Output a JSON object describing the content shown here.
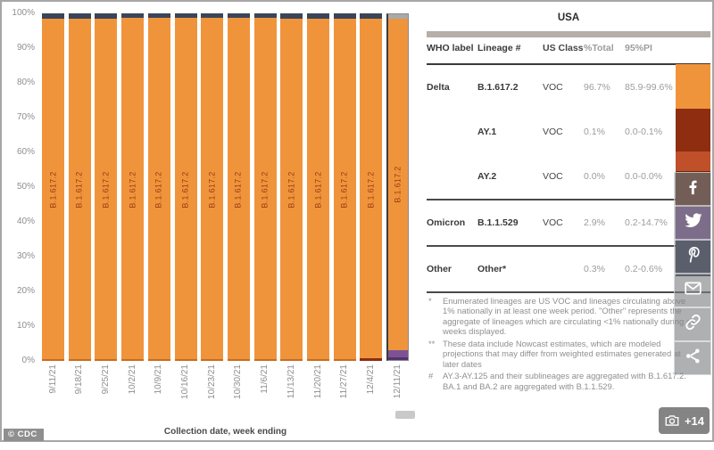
{
  "chart_data": {
    "type": "stacked_bar",
    "title": "",
    "xlabel": "Collection date, week ending",
    "ylabel": "",
    "ylim": [
      0,
      100
    ],
    "grid": false,
    "legend_position": "right",
    "y_ticks": [
      "100%",
      "90%",
      "80%",
      "70%",
      "60%",
      "50%",
      "40%",
      "30%",
      "20%",
      "10%",
      "0%"
    ],
    "categories": [
      "9/11/21",
      "9/18/21",
      "9/25/21",
      "10/2/21",
      "10/9/21",
      "10/16/21",
      "10/23/21",
      "10/30/21",
      "11/6/21",
      "11/13/21",
      "11/20/21",
      "11/27/21",
      "12/4/21",
      "12/11/21"
    ],
    "bar_inner_label": "B.1.617.2",
    "highlight_index": 13,
    "series": [
      {
        "name": "B.1.617.2",
        "color": "#F0943C",
        "values": [
          98.6,
          98.6,
          98.6,
          98.7,
          98.7,
          98.8,
          98.8,
          98.7,
          98.7,
          98.6,
          98.6,
          98.6,
          98.3,
          96.7
        ]
      },
      {
        "name": "B.1.1.529",
        "color": "#7C5295",
        "values": [
          0,
          0,
          0,
          0,
          0,
          0,
          0,
          0,
          0,
          0,
          0,
          0,
          0,
          2.9
        ]
      },
      {
        "name": "Other",
        "color": "#3A4558",
        "values": [
          1.4,
          1.4,
          1.4,
          1.3,
          1.3,
          1.2,
          1.2,
          1.3,
          1.3,
          1.4,
          1.4,
          1.4,
          1.4,
          0.3
        ]
      }
    ]
  },
  "table": {
    "title": "USA",
    "columns": [
      "WHO label",
      "Lineage #",
      "US Class",
      "%Total",
      "95%PI"
    ],
    "groups": [
      {
        "rows": [
          {
            "who": "Delta",
            "lineage": "B.1.617.2",
            "us_class": "VOC",
            "total": "96.7%",
            "pi": "85.9-99.6%"
          },
          {
            "who": "",
            "lineage": "AY.1",
            "us_class": "VOC",
            "total": "0.1%",
            "pi": "0.0-0.1%"
          },
          {
            "who": "",
            "lineage": "AY.2",
            "us_class": "VOC",
            "total": "0.0%",
            "pi": "0.0-0.0%"
          }
        ]
      },
      {
        "rows": [
          {
            "who": "Omicron",
            "lineage": "B.1.1.529",
            "us_class": "VOC",
            "total": "2.9%",
            "pi": "0.2-14.7%"
          }
        ]
      },
      {
        "rows": [
          {
            "who": "Other",
            "lineage": "Other*",
            "us_class": "",
            "total": "0.3%",
            "pi": "0.2-0.6%"
          }
        ]
      }
    ],
    "footnotes": [
      {
        "marker": "*",
        "text": "Enumerated lineages are US VOC and lineages circulating above 1% nationally in at least one week period. \"Other\" represents the aggregate of lineages which are circulating <1% nationally during all weeks displayed."
      },
      {
        "marker": "**",
        "text": "These data include Nowcast estimates, which are modeled projections that may differ from weighted estimates generated at later dates"
      },
      {
        "marker": "#",
        "text": "AY.3-AY.125 and their sublineages are aggregated with B.1.617.2. BA.1 and BA.2 are aggregated with B.1.1.529."
      }
    ]
  },
  "legend_strip": {
    "segments": [
      {
        "color": "#F0943C",
        "height": 50
      },
      {
        "color": "#8E2D10",
        "height": 48
      },
      {
        "color": "#C0502A",
        "height": 22
      },
      {
        "color": "#63280E",
        "height": 40
      },
      {
        "color": "#7C5295",
        "height": 38
      },
      {
        "color": "#232C44",
        "height": 40
      }
    ]
  },
  "social": {
    "icons": [
      "facebook-icon",
      "twitter-icon",
      "pinterest-icon",
      "email-icon",
      "link-icon",
      "share-icon"
    ]
  },
  "badges": {
    "cdc": "© CDC",
    "photo_count": "+14"
  },
  "colors": {
    "bar_orange": "#F0943C",
    "bar_navy_cap": "#3A4558",
    "bar_purple": "#7C5295",
    "highlight_cap": "#A7AAAD",
    "bar_label_text": "#963C10",
    "axis_text": "#8E8E8E"
  }
}
